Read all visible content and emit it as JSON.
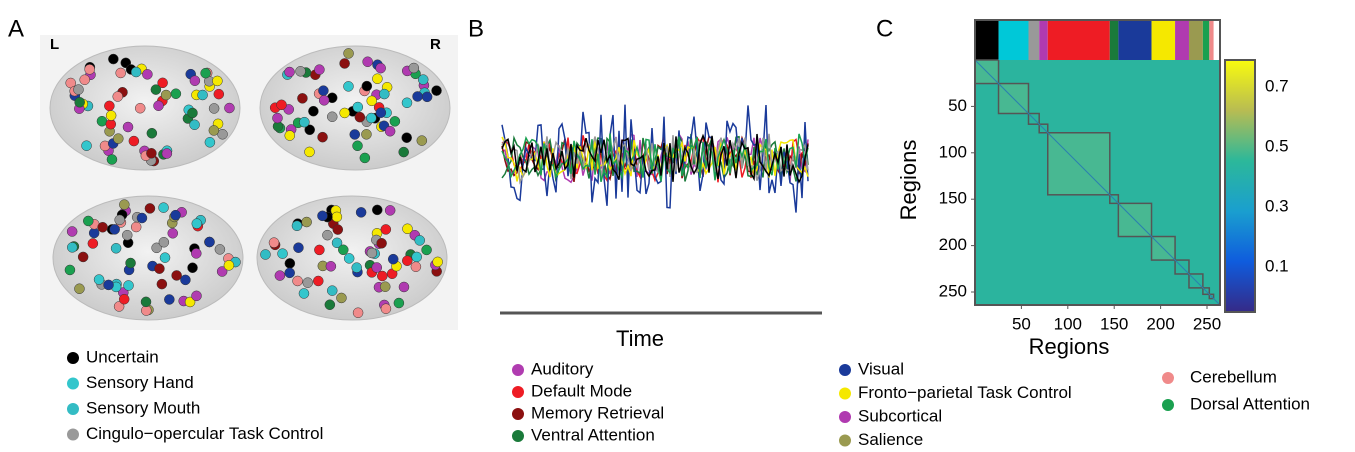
{
  "panels": {
    "a": "A",
    "b": "B",
    "c": "C"
  },
  "brain": {
    "left": "L",
    "right": "R"
  },
  "timeseries": {
    "xlabel": "Time"
  },
  "heatmap": {
    "xlabel": "Regions",
    "ylabel": "Regions",
    "xlim": [
      0,
      264
    ],
    "ylim": [
      0,
      264
    ],
    "xticks": [
      50,
      100,
      150,
      200,
      250
    ],
    "yticks": [
      50,
      100,
      150,
      200,
      250
    ],
    "colorbar_lim": [
      -0.05,
      0.79
    ],
    "colorbar_ticks": [
      0.1,
      0.3,
      0.5,
      0.7
    ]
  },
  "legend": [
    [
      {
        "name": "Uncertain",
        "color": "#000000"
      },
      {
        "name": "Sensory Hand",
        "color": "#33c6cc"
      },
      {
        "name": "Sensory Mouth",
        "color": "#33bcc4"
      },
      {
        "name": "Cingulo−opercular Task Control",
        "color": "#999999"
      }
    ],
    [
      {
        "name": "Auditory",
        "color": "#b03cb0"
      },
      {
        "name": "Default Mode",
        "color": "#ee1c24"
      },
      {
        "name": "Memory Retrieval",
        "color": "#8b1010"
      },
      {
        "name": "Ventral Attention",
        "color": "#1a7a3a"
      }
    ],
    [
      {
        "name": "Visual",
        "color": "#1a3a9a"
      },
      {
        "name": "Fronto−parietal Task Control",
        "color": "#f5e800"
      },
      {
        "name": "Subcortical",
        "color": "#b03ab0"
      },
      {
        "name": "Salience",
        "color": "#9a9a50"
      }
    ],
    [
      {
        "name": "Cerebellum",
        "color": "#f08a8a"
      },
      {
        "name": "Dorsal Attention",
        "color": "#1aa050"
      }
    ]
  ]
}
